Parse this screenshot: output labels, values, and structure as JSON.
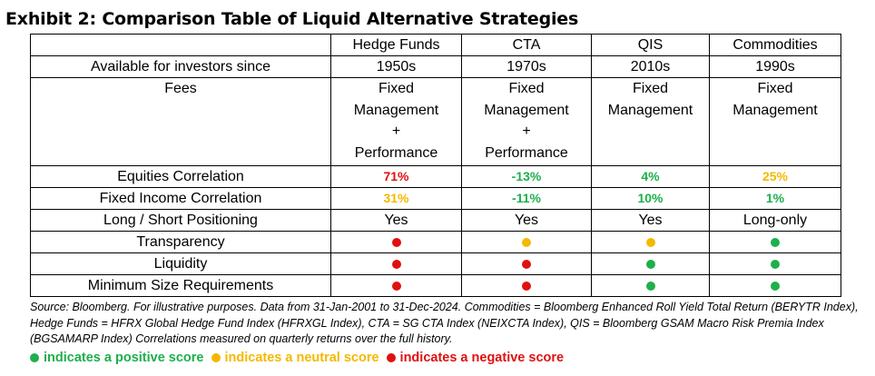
{
  "title": "Exhibit 2: Comparison Table of Liquid Alternative Strategies",
  "colors": {
    "green": "#1db04b",
    "yellow": "#f5b800",
    "red": "#e01010"
  },
  "table": {
    "columns": [
      "Hedge Funds",
      "CTA",
      "QIS",
      "Commodities"
    ],
    "since": {
      "label": "Available for investors since",
      "values": [
        "1950s",
        "1970s",
        "2010s",
        "1990s"
      ]
    },
    "fees": {
      "label": "Fees",
      "values": [
        [
          "Fixed",
          "Management",
          "+",
          "Performance"
        ],
        [
          "Fixed",
          "Management",
          "+",
          "Performance"
        ],
        [
          "Fixed",
          "Management"
        ],
        [
          "Fixed",
          "Management"
        ]
      ]
    },
    "equities": {
      "label": "Equities Correlation",
      "values": [
        "71%",
        "-13%",
        "4%",
        "25%"
      ],
      "scores": [
        "red",
        "green",
        "green",
        "yellow"
      ]
    },
    "fixed_income": {
      "label": "Fixed Income Correlation",
      "values": [
        "31%",
        "-11%",
        "10%",
        "1%"
      ],
      "scores": [
        "yellow",
        "green",
        "green",
        "green"
      ]
    },
    "positioning": {
      "label": "Long / Short Positioning",
      "values": [
        "Yes",
        "Yes",
        "Yes",
        "Long-only"
      ]
    },
    "transparency": {
      "label": "Transparency",
      "scores": [
        "red",
        "yellow",
        "yellow",
        "green"
      ]
    },
    "liquidity": {
      "label": "Liquidity",
      "scores": [
        "red",
        "red",
        "green",
        "green"
      ]
    },
    "min_size": {
      "label": "Minimum Size Requirements",
      "scores": [
        "red",
        "red",
        "green",
        "green"
      ]
    }
  },
  "source": "Source: Bloomberg. For illustrative purposes. Data from 31-Jan-2001 to 31-Dec-2024. Commodities = Bloomberg Enhanced Roll Yield Total Return (BERYTR Index), Hedge Funds = HFRX Global Hedge Fund Index (HFRXGL Index), CTA = SG CTA Index (NEIXCTA Index), QIS = Bloomberg GSAM Macro Risk Premia Index (BGSAMARP Index) Correlations measured on quarterly returns over the full history.",
  "legend": [
    {
      "color": "green",
      "text": "indicates a positive score"
    },
    {
      "color": "yellow",
      "text": "indicates a neutral score"
    },
    {
      "color": "red",
      "text": "indicates a negative score"
    }
  ]
}
